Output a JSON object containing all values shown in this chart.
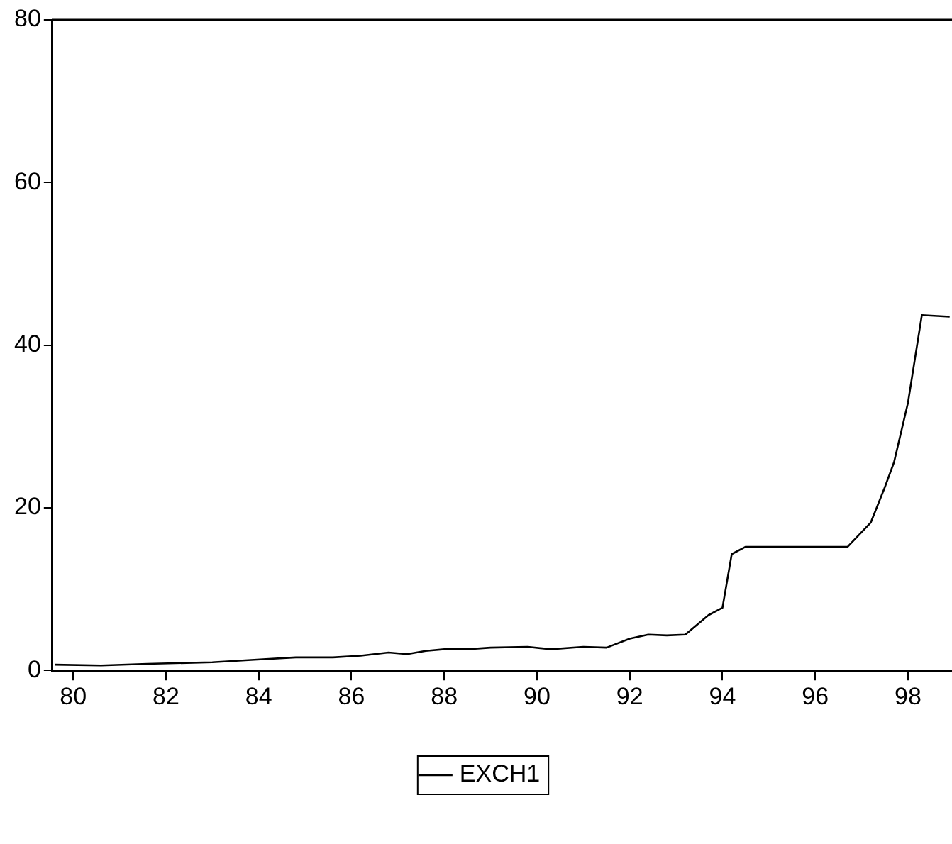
{
  "chart_data": {
    "type": "line",
    "legend": "bottom",
    "grid": false,
    "marker": "none",
    "line_style": "solid",
    "x": [
      79.6,
      80.6,
      81.6,
      83.0,
      83.9,
      84.8,
      85.6,
      86.2,
      86.8,
      87.2,
      87.6,
      88.0,
      88.5,
      89.0,
      89.8,
      90.3,
      91.0,
      91.5,
      92.0,
      92.4,
      92.8,
      93.2,
      93.7,
      94.0,
      94.2,
      94.5,
      96.7,
      97.2,
      97.5,
      97.7,
      98.0,
      98.3,
      98.9
    ],
    "series": [
      {
        "name": "EXCH1",
        "color": "#000000",
        "values": [
          0.7,
          0.6,
          0.8,
          1.0,
          1.3,
          1.6,
          1.6,
          1.8,
          2.2,
          2.0,
          2.4,
          2.6,
          2.6,
          2.8,
          2.9,
          2.6,
          2.9,
          2.8,
          3.9,
          4.4,
          4.3,
          4.4,
          6.8,
          7.7,
          14.3,
          15.2,
          15.2,
          18.2,
          22.5,
          25.6,
          32.9,
          43.7,
          43.5
        ]
      }
    ],
    "ylim": [
      0,
      80
    ],
    "yticks": [
      0,
      20,
      40,
      60,
      80
    ],
    "xlim": [
      79.55,
      98.95
    ],
    "xticks": [
      80,
      82,
      84,
      86,
      88,
      90,
      92,
      94,
      96,
      98
    ]
  }
}
